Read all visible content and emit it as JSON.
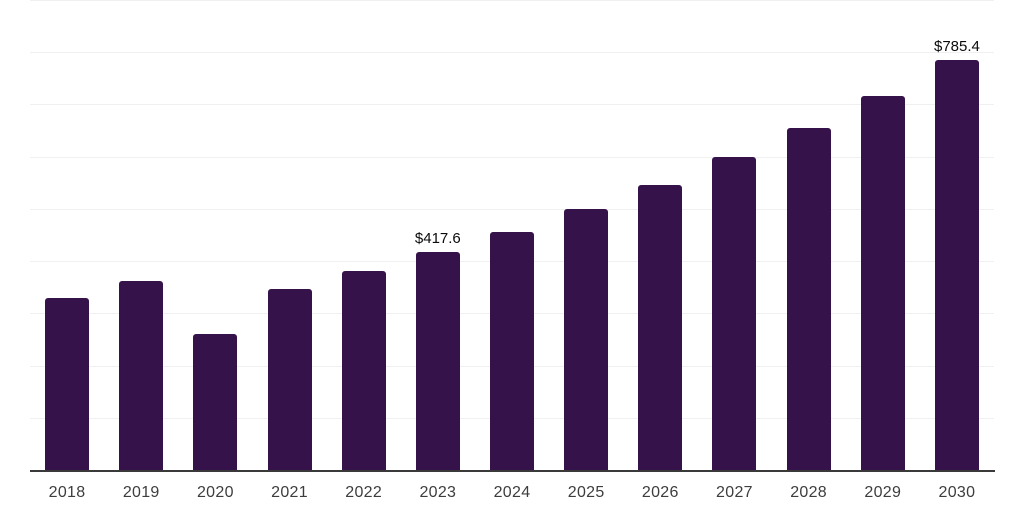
{
  "chart_data": {
    "type": "bar",
    "title": "",
    "xlabel": "",
    "ylabel": "",
    "categories": [
      "2018",
      "2019",
      "2020",
      "2021",
      "2022",
      "2023",
      "2024",
      "2025",
      "2026",
      "2027",
      "2028",
      "2029",
      "2030"
    ],
    "values": [
      330,
      361,
      260.5,
      346,
      381,
      417.6,
      456,
      500,
      546,
      600,
      654,
      716.5,
      785.4
    ],
    "data_labels": {
      "2023": "$417.6",
      "2030": "$785.4"
    },
    "value_prefix": "$",
    "ylim": [
      0,
      900
    ],
    "gridline_step": 100,
    "grid": "horizontal",
    "legend": "none",
    "y_tick_labels_visible": false
  },
  "colors": {
    "bar": "#351249",
    "gridline": "#f0f0f0",
    "axis_line": "#3a3a3a",
    "tick_label": "#3d3d3d",
    "data_label": "#0b0b0b",
    "background": "#ffffff"
  }
}
